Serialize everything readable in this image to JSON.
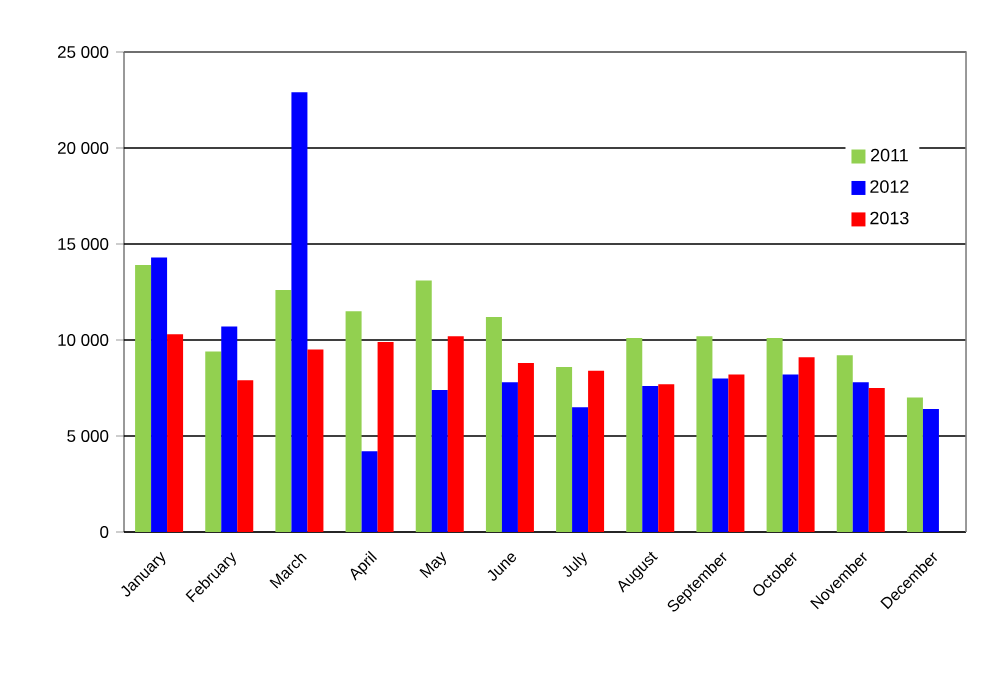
{
  "chart_data": {
    "type": "bar",
    "categories": [
      "January",
      "February",
      "March",
      "April",
      "May",
      "June",
      "July",
      "August",
      "September",
      "October",
      "November",
      "December"
    ],
    "series": [
      {
        "name": "2011",
        "color": "#92d050",
        "values": [
          13900,
          9400,
          12600,
          11500,
          13100,
          11200,
          8600,
          10100,
          10200,
          10100,
          9200,
          7000
        ]
      },
      {
        "name": "2012",
        "color": "#0000ff",
        "values": [
          14300,
          10700,
          22900,
          4200,
          7400,
          7800,
          6500,
          7600,
          8000,
          8200,
          7800,
          6400
        ]
      },
      {
        "name": "2013",
        "color": "#ff0000",
        "values": [
          10300,
          7900,
          9500,
          9900,
          10200,
          8800,
          8400,
          7700,
          8200,
          9100,
          7500,
          null
        ]
      }
    ],
    "ylim": [
      0,
      25000
    ],
    "yticks": [
      0,
      {
        "value": 5000,
        "label": "5 000"
      },
      {
        "value": 10000,
        "label": "10 000"
      },
      {
        "value": 15000,
        "label": "15 000"
      },
      {
        "value": 20000,
        "label": "20 000"
      },
      {
        "value": 25000,
        "label": "25 000"
      }
    ],
    "grid": "y",
    "legend": "top right"
  }
}
